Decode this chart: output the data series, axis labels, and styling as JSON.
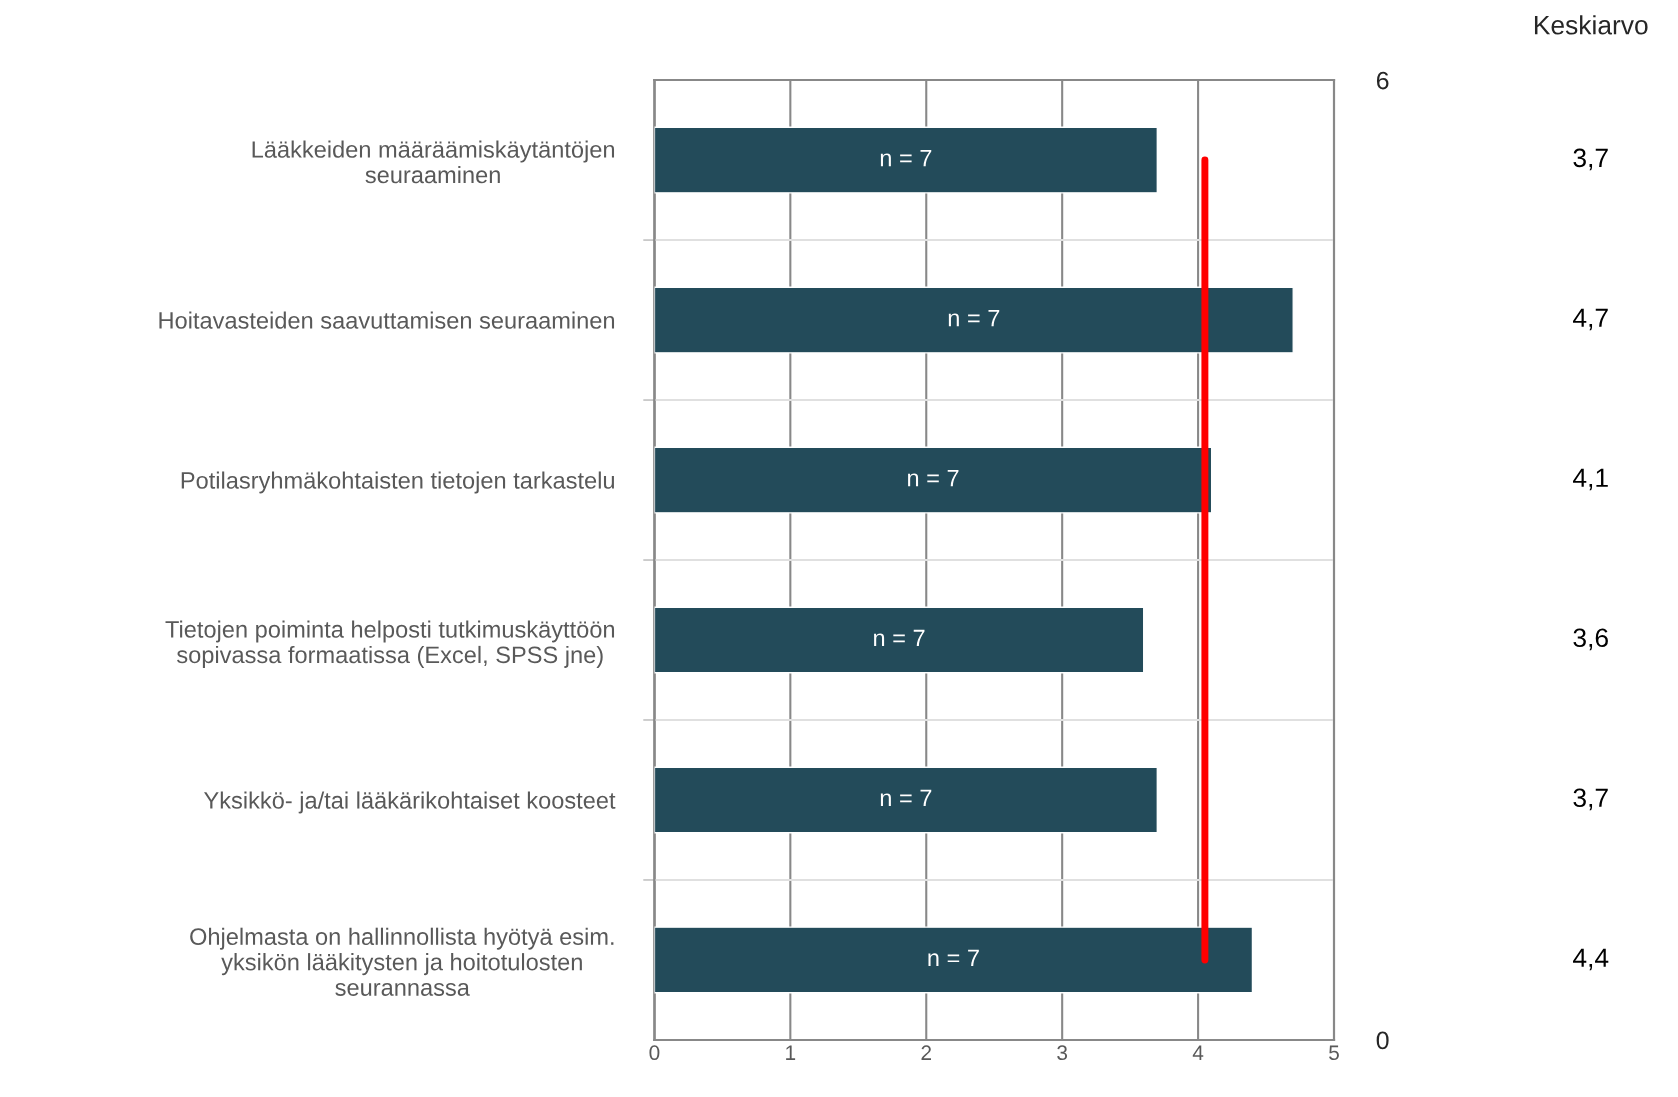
{
  "chart_data": {
    "type": "bar",
    "orientation": "horizontal",
    "categories": [
      "Lääkkeiden määräämiskäytäntöjen\nseuraaminen",
      "Hoitavasteiden saavuttamisen seuraaminen",
      "Potilasryhmäkohtaisten tietojen tarkastelu",
      "Tietojen poiminta helposti tutkimuskäyttöön\nsopivassa formaatissa (Excel, SPSS jne)",
      "Yksikkö- ja/tai lääkärikohtaiset koosteet",
      "Ohjelmasta on hallinnollista hyötyä esim.\nyksikön lääkitysten ja hoitotulosten\nseurannassa"
    ],
    "series": [
      {
        "color": "#234b5a",
        "values": [
          3.7,
          4.7,
          4.1,
          3.6,
          3.7,
          4.4
        ],
        "value_labels": [
          "3,7",
          "4,7",
          "4,1",
          "3,6",
          "3,7",
          "4,4"
        ]
      }
    ],
    "xlim": [
      0,
      5
    ],
    "xticks": [
      0,
      1,
      2,
      3,
      4,
      5
    ],
    "y2lim": [
      0,
      6
    ],
    "y2ticks": [
      0,
      6
    ],
    "ref_lines": [
      {
        "axis": "x",
        "value": 4.05,
        "color": "#ff0000"
      }
    ],
    "annotations": [
      "Keskiarvo",
      "n = 7",
      "n = 7",
      "n = 7",
      "n = 7",
      "n = 7",
      "n = 7"
    ],
    "grid": "x"
  }
}
